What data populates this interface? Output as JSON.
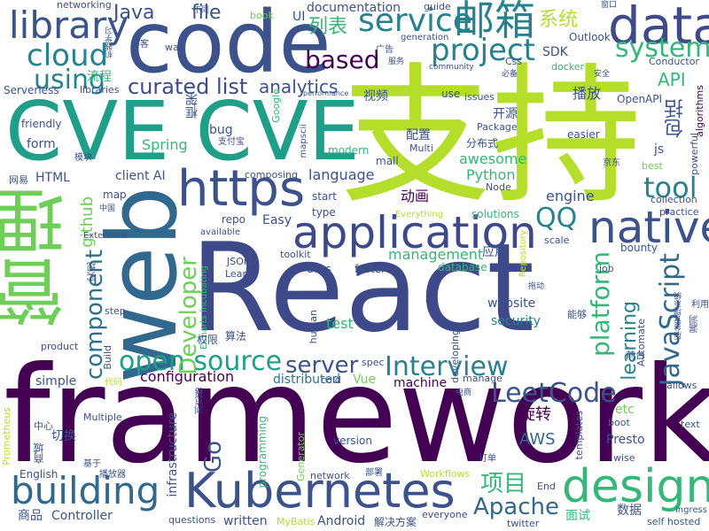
{
  "palette": {
    "viridis_dark": "#440154",
    "indigo": "#3b528b",
    "blue": "#31688e",
    "teal": "#26828e",
    "green": "#35b779",
    "lime": "#6ece58",
    "yellowgreen": "#b5de2b",
    "yellow": "#fde725"
  },
  "words": [
    {
      "text": "framework",
      "color": "#440154"
    },
    {
      "text": "React",
      "color": "#3e4989"
    },
    {
      "text": "支持",
      "color": "#b5de2b"
    },
    {
      "text": "CVE CVE",
      "color": "#1f9e89"
    },
    {
      "text": "code",
      "color": "#3b528b"
    },
    {
      "text": "web",
      "color": "#31688e"
    },
    {
      "text": "管理",
      "color": "#6ece58"
    },
    {
      "text": "https",
      "color": "#3b528b"
    },
    {
      "text": "data",
      "color": "#3e4a89"
    },
    {
      "text": "application",
      "color": "#3e4989"
    },
    {
      "text": "Kubernetes",
      "color": "#3b528b"
    },
    {
      "text": "native",
      "color": "#3b528b"
    },
    {
      "text": "building",
      "color": "#31688e"
    },
    {
      "text": "design",
      "color": "#35b779"
    },
    {
      "text": "邮箱",
      "color": "#26828e"
    },
    {
      "text": "library",
      "color": "#3b528b"
    },
    {
      "text": "service",
      "color": "#26828e"
    },
    {
      "text": "open source",
      "color": "#1f9e89"
    },
    {
      "text": "Interview",
      "color": "#26828e"
    },
    {
      "text": "cloud",
      "color": "#26828e"
    },
    {
      "text": "project",
      "color": "#26828e"
    },
    {
      "text": "system",
      "color": "#35b779"
    },
    {
      "text": "tool",
      "color": "#26828e"
    },
    {
      "text": "based",
      "color": "#440154"
    },
    {
      "text": "using",
      "color": "#26828e"
    },
    {
      "text": "curated list",
      "color": "#3e4a89"
    },
    {
      "text": "LeetCode",
      "color": "#3b528b"
    },
    {
      "text": "Apache",
      "color": "#31688e"
    },
    {
      "text": "项目",
      "color": "#35b779"
    },
    {
      "text": "JavaScript",
      "color": "#31688e"
    },
    {
      "text": "platform",
      "color": "#35b779"
    },
    {
      "text": "component",
      "color": "#2c728e"
    },
    {
      "text": "Developer",
      "color": "#6ece58"
    },
    {
      "text": "QQ",
      "color": "#26828e"
    },
    {
      "text": "server",
      "color": "#3b528b"
    },
    {
      "text": "analytics",
      "color": "#3b528b"
    },
    {
      "text": "file",
      "color": "#3b528b"
    },
    {
      "text": "Java",
      "color": "#3b528b"
    },
    {
      "text": "列表",
      "color": "#35b779"
    },
    {
      "text": "系统",
      "color": "#b5de2b"
    },
    {
      "text": "API",
      "color": "#35b779"
    },
    {
      "text": "包括",
      "color": "#3b528b"
    },
    {
      "text": "learning",
      "color": "#26828e"
    },
    {
      "text": "Go",
      "color": "#3b528b"
    },
    {
      "text": "github",
      "color": "#6ece58"
    },
    {
      "text": "management",
      "color": "#35b779"
    },
    {
      "text": "AWS",
      "color": "#31688e"
    },
    {
      "text": "旋转",
      "color": "#440154"
    },
    {
      "text": "configuration",
      "color": "#440154"
    },
    {
      "text": "distributed",
      "color": "#2c728e"
    },
    {
      "text": "machine",
      "color": "#440154"
    },
    {
      "text": "Spring",
      "color": "#35b779"
    },
    {
      "text": "Python",
      "color": "#35b779"
    },
    {
      "text": "awesome",
      "color": "#35b779"
    },
    {
      "text": "language",
      "color": "#3b528b"
    },
    {
      "text": "engine",
      "color": "#3b528b"
    },
    {
      "text": "website",
      "color": "#3b528b"
    },
    {
      "text": "security",
      "color": "#26828e"
    },
    {
      "text": "test",
      "color": "#35b779"
    },
    {
      "text": "documentation",
      "color": "#3b528b"
    },
    {
      "text": "HTML",
      "color": "#3b528b"
    },
    {
      "text": "form",
      "color": "#3b528b"
    },
    {
      "text": "client AI",
      "color": "#3b528b"
    },
    {
      "text": "bug",
      "color": "#3b528b"
    },
    {
      "text": "Vue",
      "color": "#6ece58"
    },
    {
      "text": "simple",
      "color": "#3b528b"
    },
    {
      "text": "dist",
      "color": "#3b528b"
    },
    {
      "text": "视频",
      "color": "#3b528b"
    },
    {
      "text": "开源",
      "color": "#3b528b"
    },
    {
      "text": "配置",
      "color": "#3b528b"
    },
    {
      "text": "动画",
      "color": "#440154"
    },
    {
      "text": "应用",
      "color": "#3b528b"
    },
    {
      "text": "播放",
      "color": "#3b528b"
    },
    {
      "text": "面试",
      "color": "#35b779"
    },
    {
      "text": "数据",
      "color": "#3b528b"
    },
    {
      "text": "商品",
      "color": "#3b528b"
    },
    {
      "text": "切换",
      "color": "#3b528b"
    },
    {
      "text": "流程",
      "color": "#35b779"
    },
    {
      "text": "框架",
      "color": "#3b528b"
    },
    {
      "text": "分布式",
      "color": "#3b528b"
    },
    {
      "text": "解决方案",
      "color": "#3b528b"
    },
    {
      "text": "etc",
      "color": "#6ece58"
    },
    {
      "text": "Presto",
      "color": "#3b528b"
    },
    {
      "text": "Android",
      "color": "#3b528b"
    },
    {
      "text": "written",
      "color": "#3b528b"
    },
    {
      "text": "Controller",
      "color": "#3b528b"
    },
    {
      "text": "English",
      "color": "#3b528b"
    },
    {
      "text": "infrastructure",
      "color": "#3b528b"
    },
    {
      "text": "programming",
      "color": "#35b779"
    },
    {
      "text": "Serverless",
      "color": "#3b528b"
    },
    {
      "text": "friendly",
      "color": "#3b528b"
    },
    {
      "text": "networking",
      "color": "#3b528b"
    },
    {
      "text": "book",
      "color": "#6ece58"
    },
    {
      "text": "guide",
      "color": "#3b528b"
    },
    {
      "text": "Outlook",
      "color": "#3b528b"
    },
    {
      "text": "Conductor",
      "color": "#3b528b"
    },
    {
      "text": "algorithms",
      "color": "#440154"
    },
    {
      "text": "OpenAPI",
      "color": "#3b528b"
    },
    {
      "text": "Package",
      "color": "#3b528b"
    },
    {
      "text": "easier",
      "color": "#3b528b"
    },
    {
      "text": "modern",
      "color": "#35b779"
    },
    {
      "text": "mall",
      "color": "#3b528b"
    },
    {
      "text": "Multi",
      "color": "#3b528b"
    },
    {
      "text": "repo",
      "color": "#3b528b"
    },
    {
      "text": "Easy",
      "color": "#3b528b"
    },
    {
      "text": "start",
      "color": "#3b528b"
    },
    {
      "text": "type",
      "color": "#3b528b"
    },
    {
      "text": "toolkit",
      "color": "#3b528b"
    },
    {
      "text": "docs",
      "color": "#3b528b"
    },
    {
      "text": "faster",
      "color": "#3b528b"
    },
    {
      "text": "database",
      "color": "#35b779"
    },
    {
      "text": "JSON",
      "color": "#3b528b"
    },
    {
      "text": "Learn",
      "color": "#3b528b"
    },
    {
      "text": "step",
      "color": "#3b528b"
    },
    {
      "text": "product",
      "color": "#3b528b"
    },
    {
      "text": "Build",
      "color": "#3b528b"
    },
    {
      "text": "human",
      "color": "#3b528b"
    },
    {
      "text": "developing",
      "color": "#3b528b"
    },
    {
      "text": "spec",
      "color": "#3b528b"
    },
    {
      "text": "manage",
      "color": "#3b528b"
    },
    {
      "text": "cold",
      "color": "#3b528b"
    },
    {
      "text": "Automate",
      "color": "#3b528b"
    },
    {
      "text": "allows",
      "color": "#3b528b"
    },
    {
      "text": "text",
      "color": "#3b528b"
    },
    {
      "text": "boot",
      "color": "#3b528b"
    },
    {
      "text": "wise",
      "color": "#3b528b"
    },
    {
      "text": "templates",
      "color": "#3b528b"
    },
    {
      "text": "Generator",
      "color": "#6ece58"
    },
    {
      "text": "Prometheus",
      "color": "#b5de2b"
    },
    {
      "text": "Multiple",
      "color": "#3b528b"
    },
    {
      "text": "network",
      "color": "#3b528b"
    },
    {
      "text": "Workflows",
      "color": "#b5de2b"
    },
    {
      "text": "version",
      "color": "#3b528b"
    },
    {
      "text": "End",
      "color": "#3b528b"
    },
    {
      "text": "questions",
      "color": "#3b528b"
    },
    {
      "text": "MyBatis",
      "color": "#b5de2b"
    },
    {
      "text": "everyone",
      "color": "#3b528b"
    },
    {
      "text": "twitter",
      "color": "#3b528b"
    },
    {
      "text": "self hosted",
      "color": "#3b528b"
    },
    {
      "text": "ingress",
      "color": "#3b528b"
    },
    {
      "text": "job",
      "color": "#3b528b"
    },
    {
      "text": "scale",
      "color": "#3b528b"
    },
    {
      "text": "bounty",
      "color": "#3b528b"
    },
    {
      "text": "solutions",
      "color": "#35b779"
    },
    {
      "text": "Everything",
      "color": "#b5de2b"
    },
    {
      "text": "map",
      "color": "#3b528b"
    },
    {
      "text": "collection",
      "color": "#3b528b"
    },
    {
      "text": "practice",
      "color": "#3b528b"
    },
    {
      "text": "best",
      "color": "#6ece58"
    },
    {
      "text": "powerful",
      "color": "#3b528b"
    },
    {
      "text": "js",
      "color": "#3b528b"
    },
    {
      "text": "issues",
      "color": "#3b528b"
    },
    {
      "text": "use",
      "color": "#3b528b"
    },
    {
      "text": "way",
      "color": "#3b528b"
    },
    {
      "text": "Css",
      "color": "#3b528b"
    },
    {
      "text": "docker",
      "color": "#35b779"
    },
    {
      "text": "community",
      "color": "#3b528b"
    },
    {
      "text": "generation",
      "color": "#3b528b"
    },
    {
      "text": "SDK",
      "color": "#3b528b"
    },
    {
      "text": "UI",
      "color": "#3b528b"
    },
    {
      "text": "libraries",
      "color": "#3b528b"
    },
    {
      "text": "performance",
      "color": "#3b528b"
    },
    {
      "text": "Google",
      "color": "#35b779"
    },
    {
      "text": "composing",
      "color": "#3b528b"
    },
    {
      "text": "mapscii",
      "color": "#3b528b"
    },
    {
      "text": "Node",
      "color": "#3b528b"
    },
    {
      "text": "available",
      "color": "#3b528b"
    },
    {
      "text": "Extension",
      "color": "#3b528b"
    },
    {
      "text": "Repository",
      "color": "#b5de2b"
    },
    {
      "text": "ECharts incubating",
      "color": "#35b779"
    },
    {
      "text": "网易",
      "color": "#3b528b"
    },
    {
      "text": "模块",
      "color": "#3b528b"
    },
    {
      "text": "中国",
      "color": "#3b528b"
    },
    {
      "text": "实现",
      "color": "#3b528b"
    },
    {
      "text": "权限",
      "color": "#3b528b"
    },
    {
      "text": "算法",
      "color": "#3b528b"
    },
    {
      "text": "能够",
      "color": "#3b528b"
    },
    {
      "text": "前台",
      "color": "#3b528b"
    },
    {
      "text": "商城",
      "color": "#3b528b"
    },
    {
      "text": "中心",
      "color": "#3b528b"
    },
    {
      "text": "基于",
      "color": "#3b528b"
    },
    {
      "text": "播放器",
      "color": "#3b528b"
    },
    {
      "text": "部署",
      "color": "#3b528b"
    },
    {
      "text": "订单",
      "color": "#3b528b"
    },
    {
      "text": "京东",
      "color": "#3b528b"
    },
    {
      "text": "博客",
      "color": "#3b528b"
    },
    {
      "text": "广告",
      "color": "#3b528b"
    },
    {
      "text": "服务",
      "color": "#3b528b"
    },
    {
      "text": "必备",
      "color": "#3b528b"
    },
    {
      "text": "安全",
      "color": "#3b528b"
    },
    {
      "text": "窗口",
      "color": "#3b528b"
    },
    {
      "text": "不同",
      "color": "#3b528b"
    },
    {
      "text": "支付宝",
      "color": "#3b528b"
    },
    {
      "text": "代码",
      "color": "#3b528b"
    },
    {
      "text": "电商",
      "color": "#3b528b"
    },
    {
      "text": "浏览器",
      "color": "#3b528b"
    },
    {
      "text": "拖动",
      "color": "#3b528b"
    },
    {
      "text": "利用",
      "color": "#3b528b"
    },
    {
      "text": "漏洞",
      "color": "#3b528b"
    },
    {
      "text": "后台管理系统",
      "color": "#3b528b"
    },
    {
      "text": "机器学习",
      "color": "#3b528b"
    },
    {
      "text": "包括",
      "color": "#3b528b"
    }
  ]
}
